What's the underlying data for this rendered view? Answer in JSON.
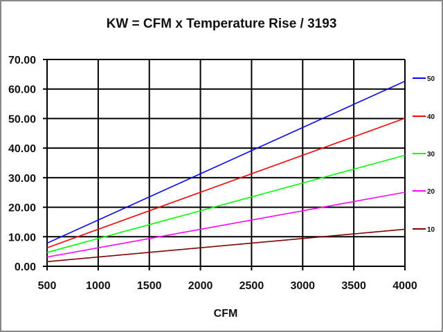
{
  "chart_data": {
    "type": "line",
    "title": "KW  =  CFM  x  Temperature Rise / 3193",
    "xlabel": "CFM",
    "ylabel": "",
    "xlim": [
      500,
      4000
    ],
    "ylim": [
      0,
      70
    ],
    "x_ticks": [
      "500",
      "1000",
      "1500",
      "2000",
      "2500",
      "3000",
      "3500",
      "4000"
    ],
    "y_ticks": [
      "0.00",
      "10.00",
      "20.00",
      "30.00",
      "40.00",
      "50.00",
      "60.00",
      "70.00"
    ],
    "grid": true,
    "legend_position": "right",
    "x": [
      500,
      4000
    ],
    "series": [
      {
        "name": "50",
        "color": "#0000ff",
        "values": [
          7.83,
          62.64
        ]
      },
      {
        "name": "40",
        "color": "#ff0000",
        "values": [
          6.26,
          50.11
        ]
      },
      {
        "name": "30",
        "color": "#00ff00",
        "values": [
          4.7,
          37.58
        ]
      },
      {
        "name": "20",
        "color": "#ff00ff",
        "values": [
          3.13,
          25.05
        ]
      },
      {
        "name": "10",
        "color": "#800000",
        "values": [
          1.57,
          12.53
        ]
      }
    ]
  }
}
